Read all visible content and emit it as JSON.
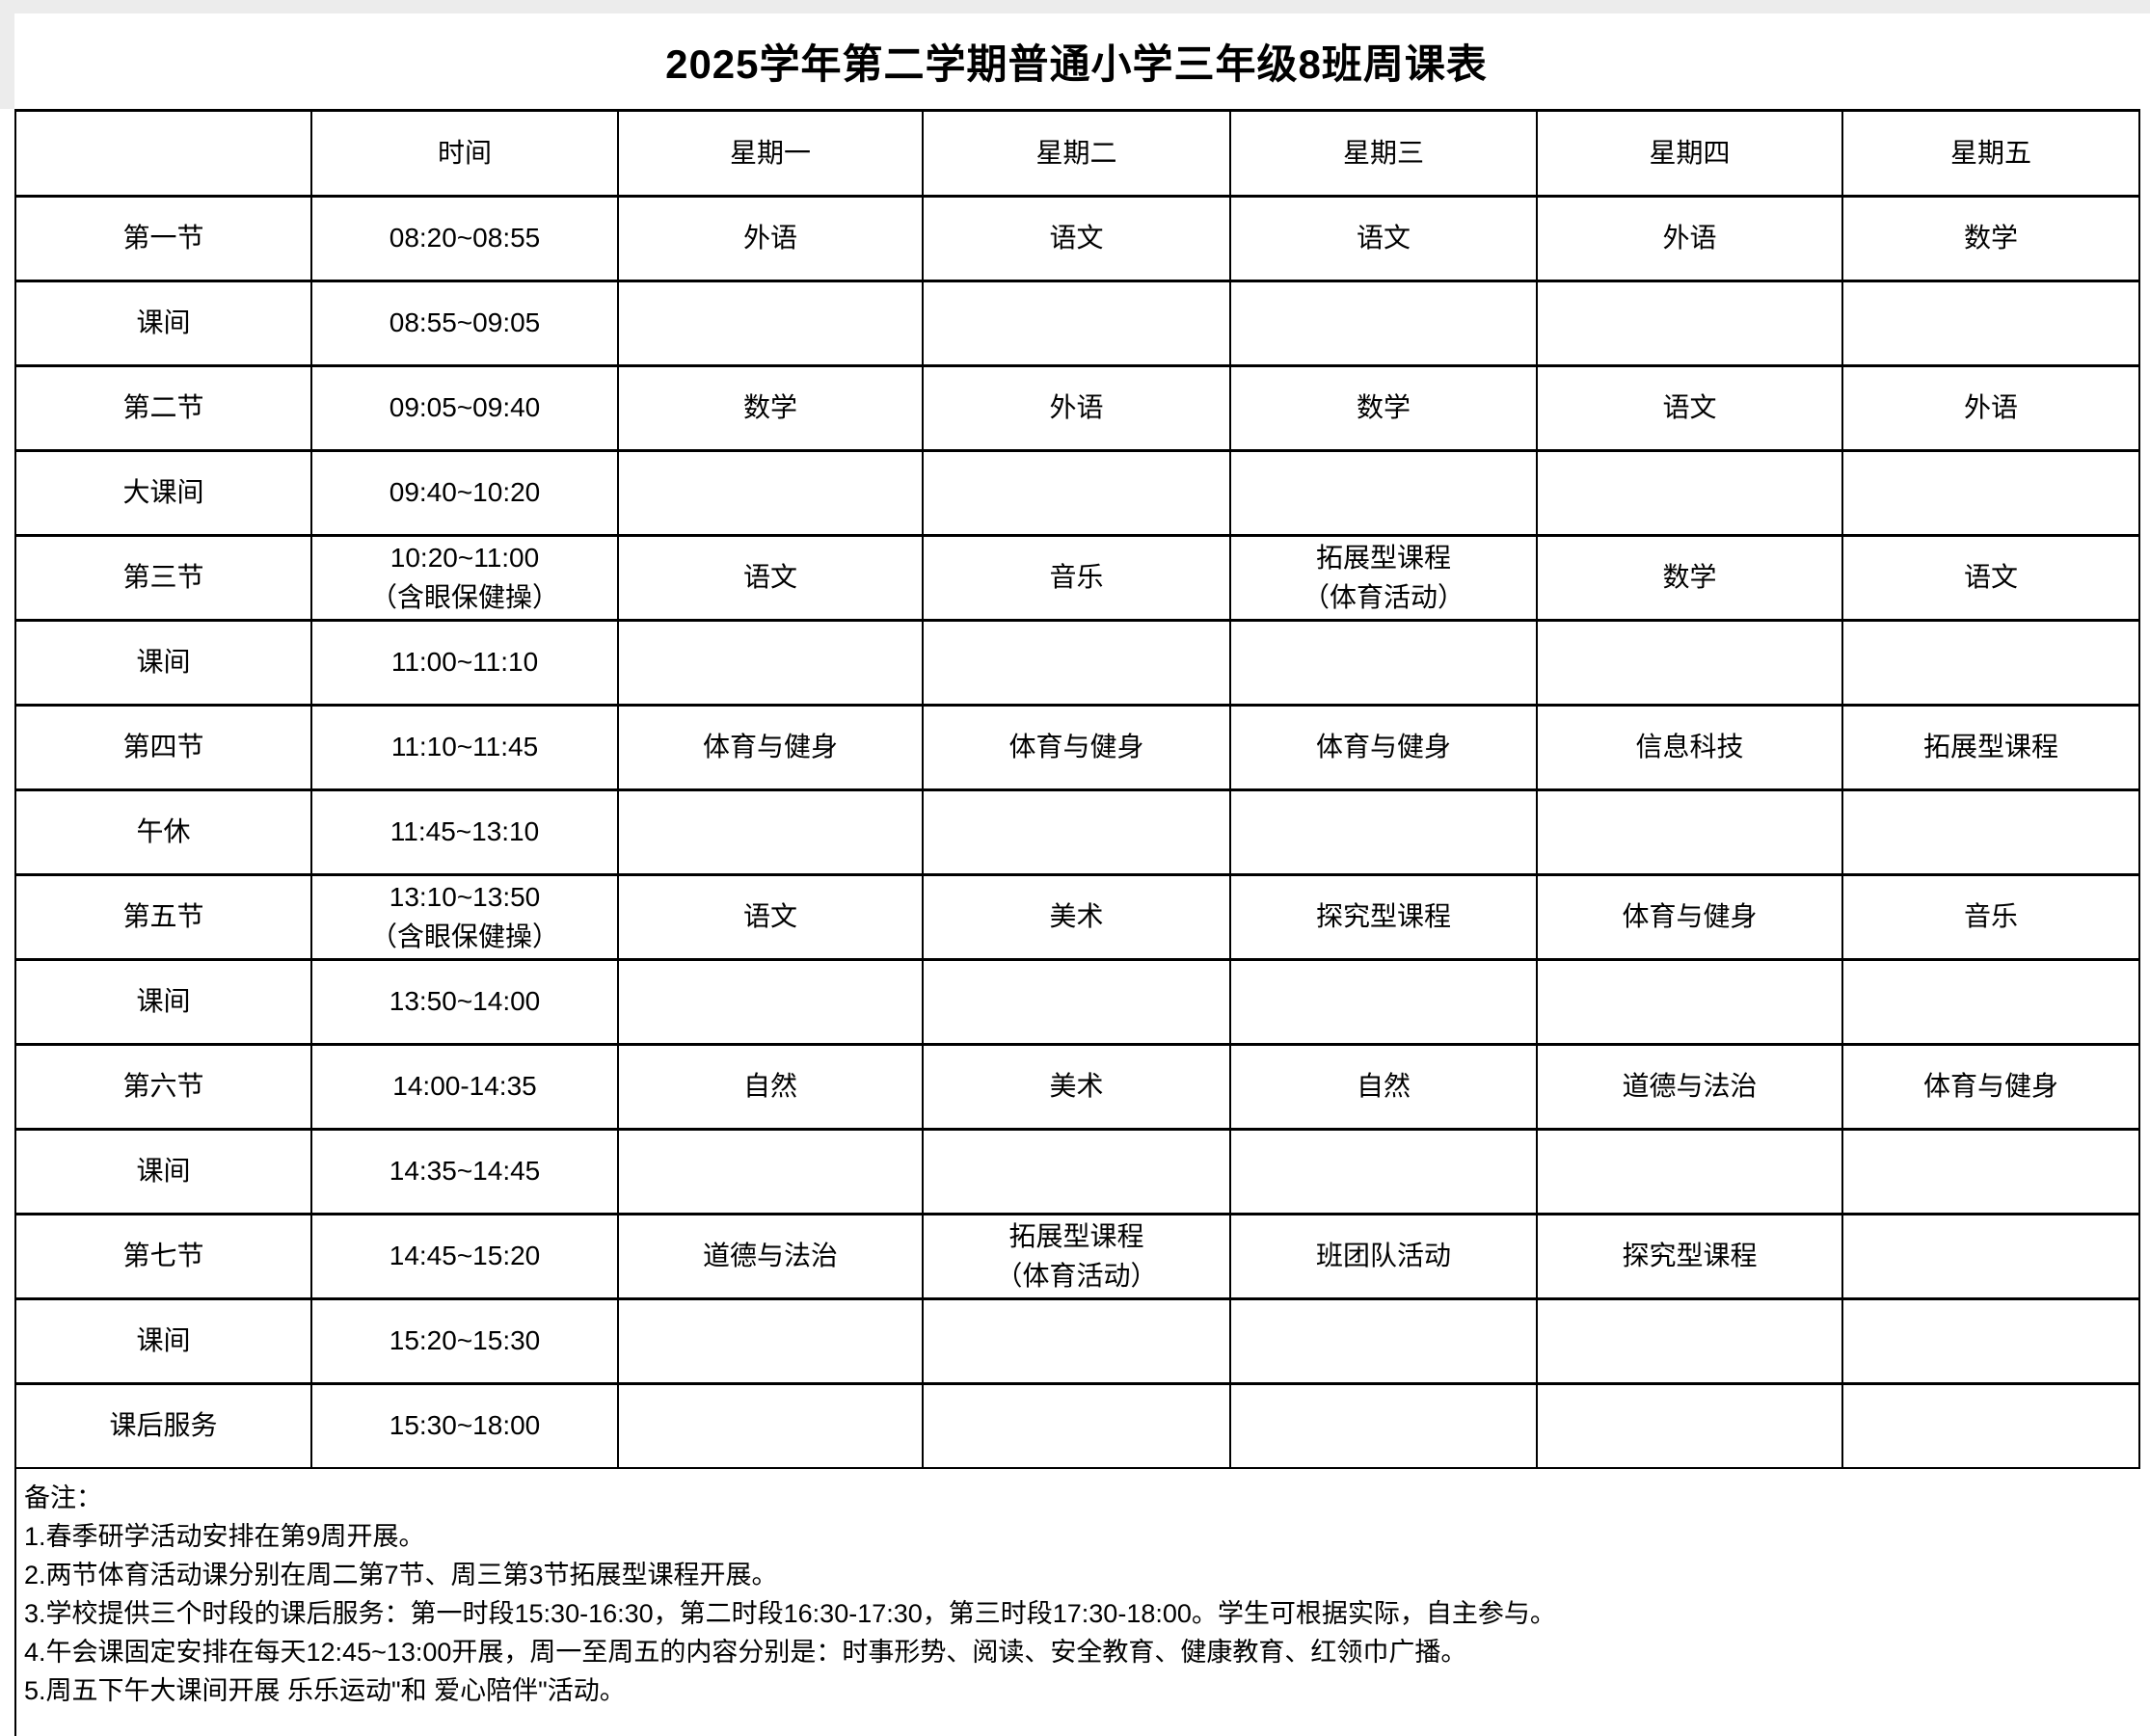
{
  "title": "2025学年第二学期普通小学三年级8班周课表",
  "table": {
    "headers": [
      "",
      "时间",
      "星期一",
      "星期二",
      "星期三",
      "星期四",
      "星期五"
    ],
    "rows": [
      {
        "label": "第一节",
        "time": "08:20~08:55",
        "cells": [
          "外语",
          "语文",
          "语文",
          "外语",
          "数学"
        ]
      },
      {
        "label": "课间",
        "time": "08:55~09:05",
        "cells": [
          "",
          "",
          "",
          "",
          ""
        ]
      },
      {
        "label": "第二节",
        "time": "09:05~09:40",
        "cells": [
          "数学",
          "外语",
          "数学",
          "语文",
          "外语"
        ]
      },
      {
        "label": "大课间",
        "time": "09:40~10:20",
        "cells": [
          "",
          "",
          "",
          "",
          ""
        ]
      },
      {
        "label": "第三节",
        "time": "10:20~11:00\n（含眼保健操）",
        "cells": [
          "语文",
          "音乐",
          "拓展型课程\n（体育活动）",
          "数学",
          "语文"
        ]
      },
      {
        "label": "课间",
        "time": "11:00~11:10",
        "cells": [
          "",
          "",
          "",
          "",
          ""
        ]
      },
      {
        "label": "第四节",
        "time": "11:10~11:45",
        "cells": [
          "体育与健身",
          "体育与健身",
          "体育与健身",
          "信息科技",
          "拓展型课程"
        ]
      },
      {
        "label": "午休",
        "time": "11:45~13:10",
        "cells": [
          "",
          "",
          "",
          "",
          ""
        ]
      },
      {
        "label": "第五节",
        "time": "13:10~13:50\n（含眼保健操）",
        "cells": [
          "语文",
          "美术",
          "探究型课程",
          "体育与健身",
          "音乐"
        ]
      },
      {
        "label": "课间",
        "time": "13:50~14:00",
        "cells": [
          "",
          "",
          "",
          "",
          ""
        ]
      },
      {
        "label": "第六节",
        "time": "14:00-14:35",
        "cells": [
          "自然",
          "美术",
          "自然",
          "道德与法治",
          "体育与健身"
        ]
      },
      {
        "label": "课间",
        "time": "14:35~14:45",
        "cells": [
          "",
          "",
          "",
          "",
          ""
        ]
      },
      {
        "label": "第七节",
        "time": "14:45~15:20",
        "cells": [
          "道德与法治",
          "拓展型课程\n（体育活动）",
          "班团队活动",
          "探究型课程",
          ""
        ]
      },
      {
        "label": "课间",
        "time": "15:20~15:30",
        "cells": [
          "",
          "",
          "",
          "",
          ""
        ]
      },
      {
        "label": "课后服务",
        "time": "15:30~18:00",
        "cells": [
          "",
          "",
          "",
          "",
          ""
        ]
      }
    ]
  },
  "notes": {
    "heading": "备注：",
    "items": [
      "1.春季研学活动安排在第9周开展。",
      "2.两节体育活动课分别在周二第7节、周三第3节拓展型课程开展。",
      "3.学校提供三个时段的课后服务：第一时段15:30-16:30，第二时段16:30-17:30，第三时段17:30-18:00。学生可根据实际，自主参与。",
      "4.午会课固定安排在每天12:45~13:00开展，周一至周五的内容分别是：时事形势、阅读、安全教育、健康教育、红领巾广播。",
      "5.周五下午大课间开展 乐乐运动\"和 爱心陪伴\"活动。"
    ]
  }
}
